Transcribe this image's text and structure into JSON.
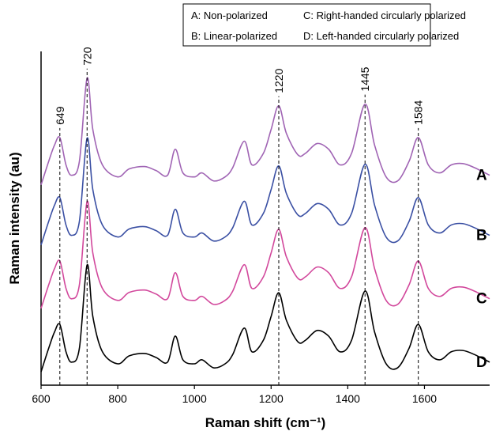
{
  "chart_data": {
    "type": "line",
    "legend_entries": [
      "A: Non-polarized",
      "B: Linear-polarized",
      "C: Right-handed circularly polarized",
      "D: Left-handed circularly polarized"
    ],
    "x_label": "Raman shift (cm⁻¹)",
    "y_label": "Raman intensity (au)",
    "x": [
      600,
      620,
      635,
      649,
      665,
      680,
      700,
      720,
      735,
      760,
      800,
      830,
      870,
      900,
      930,
      950,
      970,
      1000,
      1020,
      1050,
      1080,
      1100,
      1130,
      1150,
      1180,
      1200,
      1220,
      1240,
      1270,
      1290,
      1320,
      1350,
      1380,
      1410,
      1445,
      1470,
      1500,
      1530,
      1560,
      1584,
      1610,
      1640,
      1670,
      1700,
      1730,
      1770
    ],
    "series": [
      {
        "name": "A",
        "color": "#a064b4",
        "values": [
          60.0,
          67.1,
          71.9,
          74.2,
          66.0,
          62.9,
          67.1,
          92.0,
          76.6,
          66.0,
          62.4,
          64.8,
          65.5,
          64.3,
          62.9,
          70.7,
          63.6,
          62.4,
          63.6,
          61.2,
          62.4,
          65.2,
          73.1,
          66.0,
          69.5,
          76.6,
          83.7,
          75.4,
          69.0,
          69.5,
          72.4,
          70.7,
          66.0,
          69.5,
          84.2,
          71.9,
          62.4,
          61.2,
          67.1,
          74.2,
          66.0,
          63.6,
          66.0,
          66.4,
          65.2,
          62.9
        ]
      },
      {
        "name": "B",
        "color": "#3a4fa3",
        "values": [
          42.0,
          49.1,
          53.9,
          56.2,
          48.0,
          44.9,
          49.1,
          74.0,
          58.6,
          48.0,
          44.4,
          46.8,
          47.5,
          46.3,
          44.9,
          52.7,
          45.6,
          44.4,
          45.6,
          43.2,
          44.4,
          47.2,
          55.1,
          48.0,
          51.5,
          58.6,
          65.7,
          57.4,
          51.0,
          51.5,
          54.4,
          52.7,
          48.0,
          51.5,
          66.2,
          53.9,
          44.4,
          43.2,
          49.1,
          56.2,
          48.0,
          45.6,
          48.0,
          48.4,
          47.2,
          44.9
        ]
      },
      {
        "name": "C",
        "color": "#d2489c",
        "values": [
          23.0,
          30.1,
          34.9,
          37.2,
          29.0,
          25.9,
          30.1,
          55.0,
          39.6,
          29.0,
          25.4,
          27.8,
          28.5,
          27.3,
          25.9,
          33.7,
          26.6,
          25.4,
          26.6,
          24.2,
          25.4,
          28.2,
          36.1,
          29.0,
          32.5,
          39.6,
          46.7,
          38.4,
          32.0,
          32.5,
          35.4,
          33.7,
          29.0,
          32.5,
          47.2,
          34.9,
          25.4,
          24.2,
          30.1,
          37.2,
          29.0,
          26.6,
          29.0,
          29.4,
          28.2,
          25.9
        ]
      },
      {
        "name": "D",
        "color": "#000000",
        "values": [
          4.0,
          11.1,
          15.9,
          18.2,
          10.0,
          6.9,
          11.1,
          36.0,
          20.6,
          10.0,
          6.4,
          8.8,
          9.5,
          8.3,
          6.9,
          14.7,
          7.6,
          6.4,
          7.6,
          5.2,
          6.4,
          9.2,
          17.1,
          10.0,
          13.5,
          20.6,
          27.7,
          19.4,
          13.0,
          13.5,
          16.4,
          14.7,
          10.0,
          13.5,
          28.2,
          15.9,
          6.4,
          5.2,
          11.1,
          18.2,
          10.0,
          7.6,
          10.0,
          10.4,
          9.2,
          6.9
        ]
      }
    ],
    "peak_lines": [
      649,
      720,
      1220,
      1445,
      1584
    ],
    "xlim": [
      600,
      1770
    ],
    "xticks": [
      600,
      800,
      1000,
      1200,
      1400,
      1600
    ],
    "ylim": [
      0,
      100
    ]
  }
}
